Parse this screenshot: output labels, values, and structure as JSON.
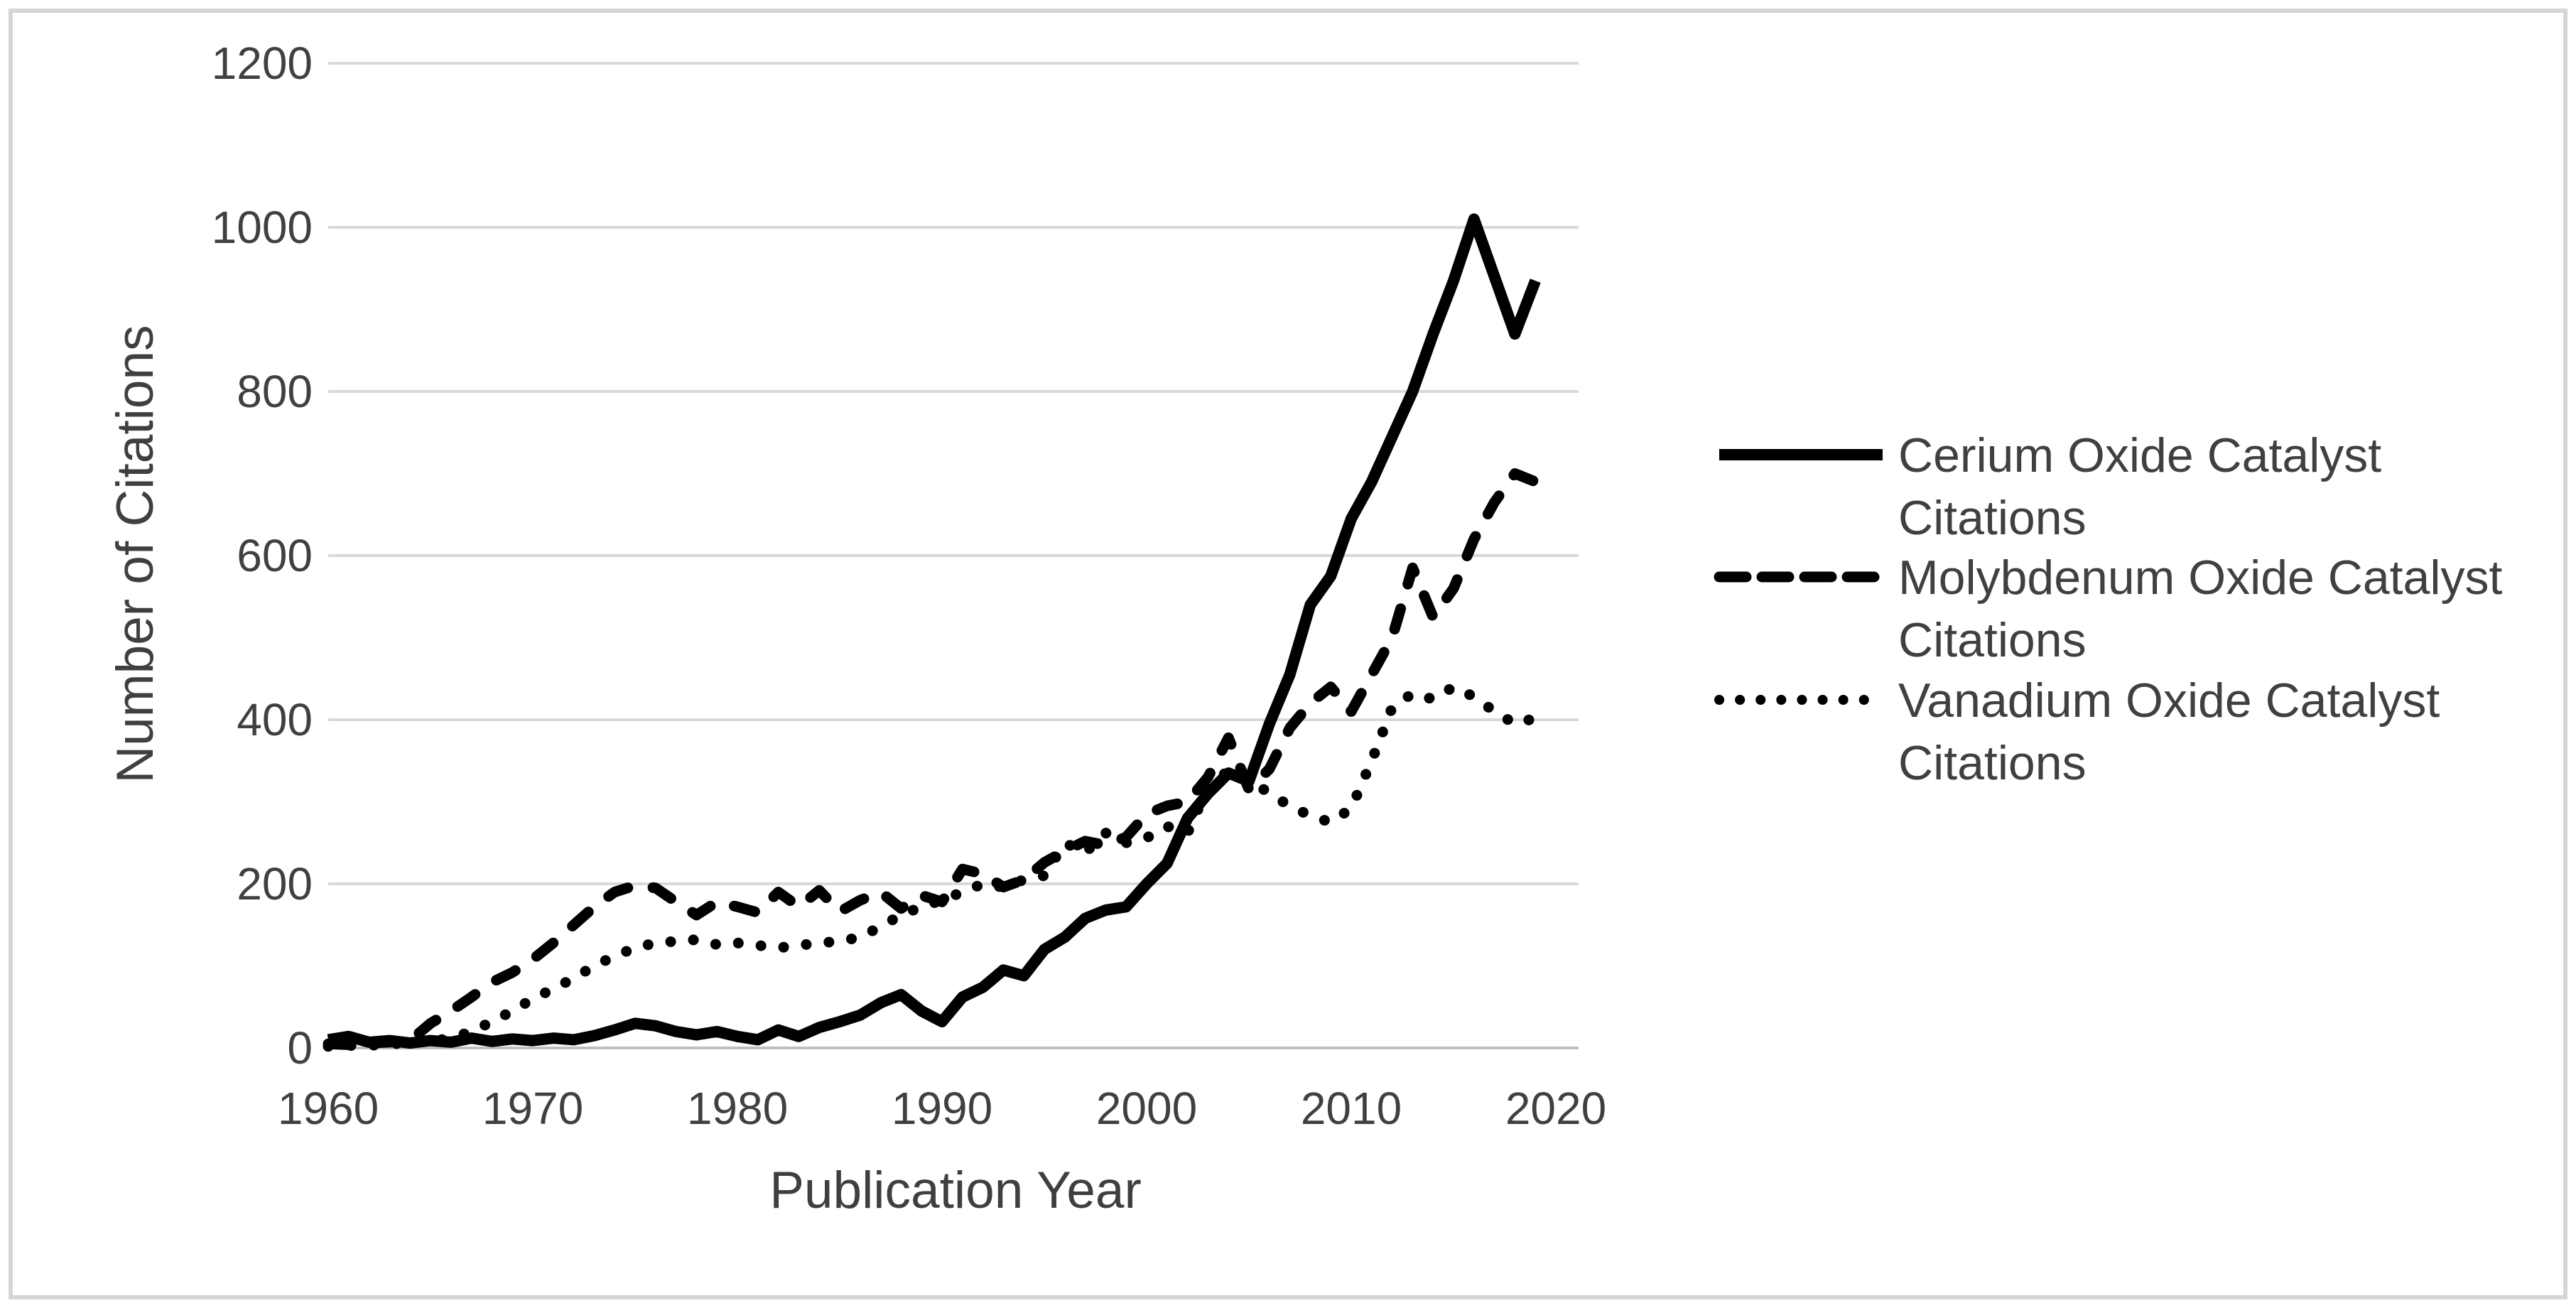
{
  "figure": {
    "background": "#ffffff",
    "border_color": "#d5d5d5",
    "text_color": "#404040",
    "gridline_color": "#d9d9d9",
    "axis_line_color": "#bfbfbf"
  },
  "chart_data": {
    "type": "line",
    "title": "",
    "xlabel": "Publication Year",
    "ylabel": "Number of Citations",
    "grid": "horizontal",
    "legend_position": "right",
    "series_color": "#000000",
    "xlim": [
      1960,
      2021
    ],
    "ylim": [
      0,
      1200
    ],
    "xticks": [
      1960,
      1970,
      1980,
      1990,
      2000,
      2010,
      2020
    ],
    "yticks": [
      0,
      200,
      400,
      600,
      800,
      1000,
      1200
    ],
    "x": [
      1960,
      1961,
      1962,
      1963,
      1964,
      1965,
      1966,
      1967,
      1968,
      1969,
      1970,
      1971,
      1972,
      1973,
      1974,
      1975,
      1976,
      1977,
      1978,
      1979,
      1980,
      1981,
      1982,
      1983,
      1984,
      1985,
      1986,
      1987,
      1988,
      1989,
      1990,
      1991,
      1992,
      1993,
      1994,
      1995,
      1996,
      1997,
      1998,
      1999,
      2000,
      2001,
      2002,
      2003,
      2004,
      2005,
      2006,
      2007,
      2008,
      2009,
      2010,
      2011,
      2012,
      2013,
      2014,
      2015,
      2016,
      2017,
      2018,
      2019
    ],
    "series": [
      {
        "name": "Cerium Oxide Catalyst Citations",
        "legend_line1": "Cerium Oxide Catalyst",
        "legend_line2": "Citations",
        "style": "solid",
        "values": [
          10,
          14,
          7,
          9,
          6,
          9,
          7,
          12,
          8,
          11,
          9,
          12,
          10,
          15,
          22,
          30,
          27,
          20,
          16,
          20,
          14,
          10,
          22,
          14,
          25,
          32,
          40,
          55,
          65,
          45,
          32,
          62,
          74,
          95,
          88,
          120,
          135,
          158,
          168,
          172,
          200,
          225,
          280,
          310,
          335,
          325,
          395,
          455,
          540,
          575,
          645,
          690,
          745,
          800,
          870,
          935,
          1010,
          940,
          870,
          935
        ]
      },
      {
        "name": "Molybdenum Oxide Catalyst Citations",
        "legend_line1": "Molybdenum Oxide Catalyst",
        "legend_line2": "Citations",
        "style": "dashed",
        "values": [
          5,
          4,
          6,
          7,
          9,
          30,
          45,
          62,
          80,
          92,
          108,
          128,
          150,
          172,
          190,
          198,
          195,
          178,
          162,
          178,
          172,
          165,
          190,
          172,
          192,
          166,
          180,
          190,
          170,
          186,
          178,
          218,
          212,
          196,
          205,
          226,
          240,
          252,
          247,
          257,
          285,
          295,
          300,
          330,
          378,
          315,
          340,
          390,
          420,
          440,
          410,
          455,
          500,
          585,
          525,
          560,
          620,
          665,
          700,
          690
        ]
      },
      {
        "name": "Vanadium Oxide Catalyst Citations",
        "legend_line1": "Vanadium Oxide Catalyst",
        "legend_line2": "Citations",
        "style": "dotted",
        "values": [
          2,
          3,
          3,
          5,
          6,
          8,
          12,
          20,
          32,
          45,
          60,
          72,
          85,
          100,
          112,
          122,
          128,
          130,
          132,
          126,
          128,
          125,
          122,
          125,
          128,
          130,
          135,
          148,
          162,
          172,
          180,
          190,
          200,
          196,
          205,
          210,
          250,
          238,
          262,
          250,
          256,
          270,
          262,
          318,
          338,
          328,
          310,
          295,
          283,
          275,
          292,
          350,
          415,
          432,
          425,
          440,
          428,
          410,
          395,
          402
        ]
      }
    ]
  }
}
